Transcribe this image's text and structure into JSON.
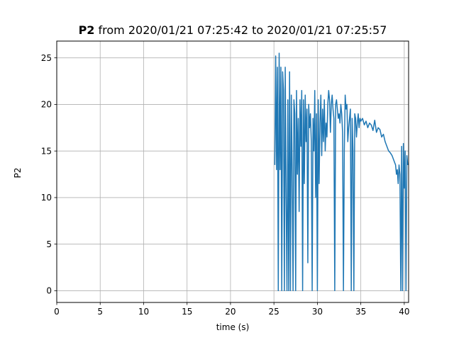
{
  "chart_data": {
    "type": "line",
    "title_bold": "P2",
    "title_rest": "from 2020/01/21 07:25:42 to 2020/01/21 07:25:57",
    "xlabel": "time (s)",
    "ylabel": "P2",
    "xlim": [
      0,
      40.5
    ],
    "ylim": [
      -1.26,
      26.8
    ],
    "xticks": [
      0,
      5,
      10,
      15,
      20,
      25,
      30,
      35,
      40
    ],
    "yticks": [
      0,
      5,
      10,
      15,
      20,
      25
    ],
    "grid": true,
    "legend": "none",
    "series": [
      {
        "color": "#1f77b4",
        "x": [
          25.1,
          25.2,
          25.3,
          25.4,
          25.5,
          25.6,
          25.7,
          25.8,
          25.9,
          26.0,
          26.1,
          26.2,
          26.3,
          26.4,
          26.5,
          26.6,
          26.7,
          26.8,
          26.9,
          27.0,
          27.1,
          27.2,
          27.3,
          27.4,
          27.5,
          27.6,
          27.7,
          27.8,
          27.9,
          28.0,
          28.1,
          28.2,
          28.3,
          28.4,
          28.5,
          28.6,
          28.7,
          28.8,
          28.9,
          29.0,
          29.1,
          29.2,
          29.3,
          29.4,
          29.5,
          29.6,
          29.7,
          29.8,
          29.9,
          30.0,
          30.1,
          30.2,
          30.3,
          30.4,
          30.5,
          30.6,
          30.7,
          30.8,
          30.9,
          31.0,
          31.1,
          31.2,
          31.3,
          31.4,
          31.5,
          31.6,
          31.7,
          31.8,
          31.9,
          32.0,
          32.1,
          32.2,
          32.3,
          32.4,
          32.5,
          32.6,
          32.7,
          32.8,
          32.9,
          33.0,
          33.1,
          33.2,
          33.3,
          33.4,
          33.5,
          33.6,
          33.7,
          33.8,
          33.9,
          34.0,
          34.1,
          34.2,
          34.3,
          34.4,
          34.5,
          34.6,
          34.7,
          34.8,
          34.9,
          35.0,
          35.2,
          35.4,
          35.6,
          35.8,
          36.0,
          36.2,
          36.4,
          36.6,
          36.8,
          37.0,
          37.2,
          37.4,
          37.6,
          37.8,
          38.0,
          38.2,
          38.4,
          38.6,
          38.8,
          39.0,
          39.1,
          39.2,
          39.3,
          39.4,
          39.5,
          39.6,
          39.7,
          39.8,
          39.9,
          40.0,
          40.1,
          40.2,
          40.3,
          40.4
        ],
        "y": [
          13.5,
          25.2,
          13.0,
          24.0,
          0.0,
          25.5,
          13.0,
          24.0,
          0.0,
          23.5,
          21.5,
          0.0,
          24.0,
          10.0,
          0.0,
          20.5,
          0.0,
          23.5,
          0.0,
          21.0,
          12.5,
          0.0,
          20.5,
          19.0,
          0.0,
          21.5,
          12.5,
          18.5,
          8.5,
          20.5,
          15.5,
          21.5,
          0.0,
          20.5,
          11.5,
          21.0,
          16.0,
          19.5,
          3.0,
          20.0,
          17.5,
          19.0,
          16.0,
          0.0,
          18.5,
          15.0,
          21.5,
          10.0,
          19.0,
          0.0,
          20.5,
          11.5,
          18.0,
          21.0,
          14.5,
          19.5,
          16.0,
          20.5,
          15.0,
          18.0,
          16.5,
          20.0,
          21.5,
          20.5,
          17.0,
          20.0,
          21.0,
          19.5,
          18.5,
          0.0,
          20.0,
          20.5,
          19.5,
          18.5,
          19.0,
          18.0,
          20.0,
          19.0,
          17.0,
          0.0,
          15.0,
          21.0,
          19.5,
          20.0,
          16.0,
          17.5,
          18.5,
          19.5,
          0.0,
          18.5,
          15.0,
          0.0,
          19.0,
          18.5,
          16.5,
          18.0,
          19.0,
          17.5,
          18.5,
          18.2,
          18.5,
          17.8,
          18.2,
          17.5,
          18.0,
          17.8,
          17.2,
          18.3,
          17.0,
          17.5,
          17.3,
          16.5,
          16.8,
          16.0,
          15.5,
          15.0,
          14.8,
          14.5,
          14.0,
          13.5,
          12.5,
          13.0,
          11.5,
          13.5,
          12.5,
          0.0,
          15.5,
          0.0,
          15.8,
          11.0,
          15.0,
          0.0,
          14.5,
          13.5
        ]
      }
    ]
  }
}
